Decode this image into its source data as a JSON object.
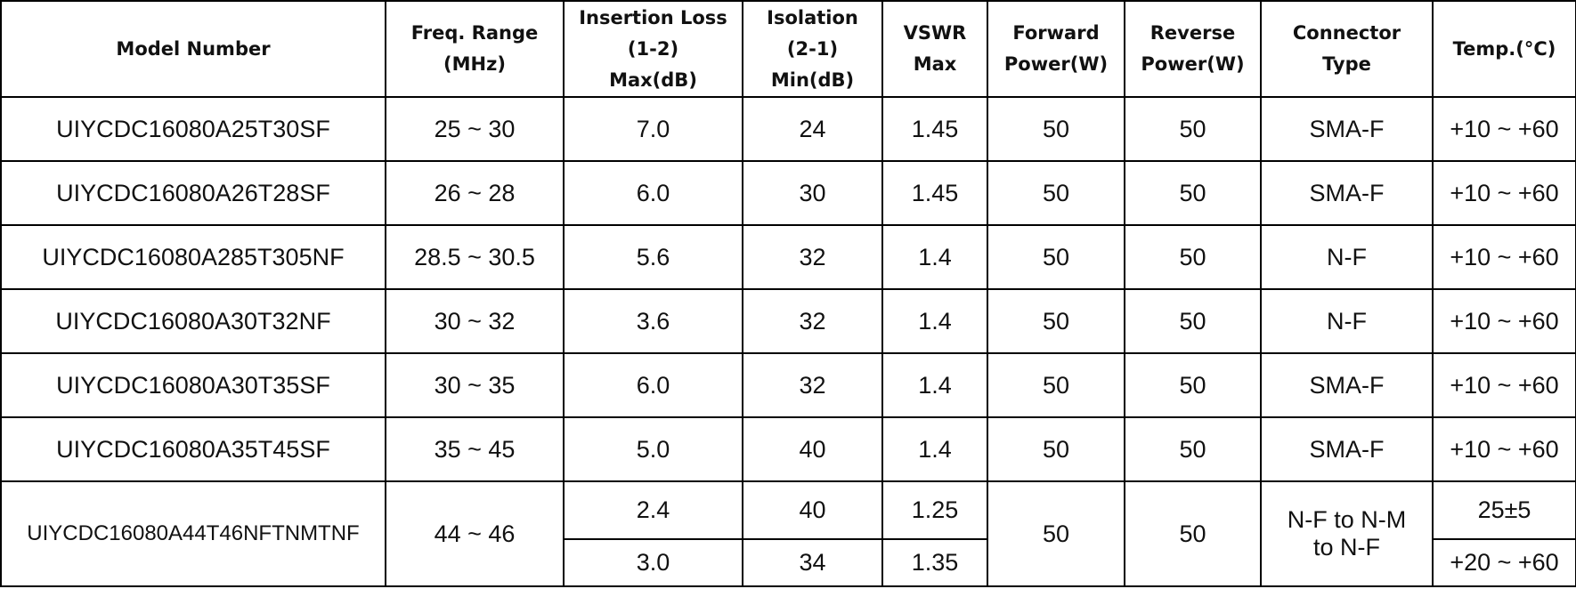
{
  "headers": {
    "model": [
      "Model Number"
    ],
    "freq": [
      "Freq. Range",
      "(MHz)"
    ],
    "il": [
      "Insertion Loss",
      "(1-2)",
      "Max(dB)"
    ],
    "iso": [
      "Isolation",
      "(2-1)",
      "Min(dB)"
    ],
    "vswr": [
      "VSWR",
      "Max"
    ],
    "fwd": [
      "Forward",
      "Power(W)"
    ],
    "rev": [
      "Reverse",
      "Power(W)"
    ],
    "conn": [
      "Connector",
      "Type"
    ],
    "temp": [
      "Temp.(°C)"
    ]
  },
  "rows": [
    {
      "model": "UIYCDC16080A25T30SF",
      "freq": "25 ~ 30",
      "il": "7.0",
      "iso": "24",
      "vswr": "1.45",
      "fwd": "50",
      "rev": "50",
      "conn": "SMA-F",
      "temp": "+10 ~ +60"
    },
    {
      "model": "UIYCDC16080A26T28SF",
      "freq": "26 ~ 28",
      "il": "6.0",
      "iso": "30",
      "vswr": "1.45",
      "fwd": "50",
      "rev": "50",
      "conn": "SMA-F",
      "temp": "+10 ~ +60"
    },
    {
      "model": "UIYCDC16080A285T305NF",
      "freq": "28.5 ~ 30.5",
      "il": "5.6",
      "iso": "32",
      "vswr": "1.4",
      "fwd": "50",
      "rev": "50",
      "conn": "N-F",
      "temp": "+10 ~ +60"
    },
    {
      "model": "UIYCDC16080A30T32NF",
      "freq": "30 ~ 32",
      "il": "3.6",
      "iso": "32",
      "vswr": "1.4",
      "fwd": "50",
      "rev": "50",
      "conn": "N-F",
      "temp": "+10 ~ +60"
    },
    {
      "model": "UIYCDC16080A30T35SF",
      "freq": "30 ~ 35",
      "il": "6.0",
      "iso": "32",
      "vswr": "1.4",
      "fwd": "50",
      "rev": "50",
      "conn": "SMA-F",
      "temp": "+10 ~ +60"
    },
    {
      "model": "UIYCDC16080A35T45SF",
      "freq": "35 ~ 45",
      "il": "5.0",
      "iso": "40",
      "vswr": "1.4",
      "fwd": "50",
      "rev": "50",
      "conn": "SMA-F",
      "temp": "+10 ~ +60"
    }
  ],
  "last_row": {
    "model": "UIYCDC16080A44T46NFTNMTNF",
    "freq": "44 ~ 46",
    "fwd": "50",
    "rev": "50",
    "conn": [
      "N-F to N-M",
      "to N-F"
    ],
    "sub": [
      {
        "il": "2.4",
        "iso": "40",
        "vswr": "1.25",
        "temp": "25±5"
      },
      {
        "il": "3.0",
        "iso": "34",
        "vswr": "1.35",
        "temp": "+20 ~ +60"
      }
    ]
  }
}
